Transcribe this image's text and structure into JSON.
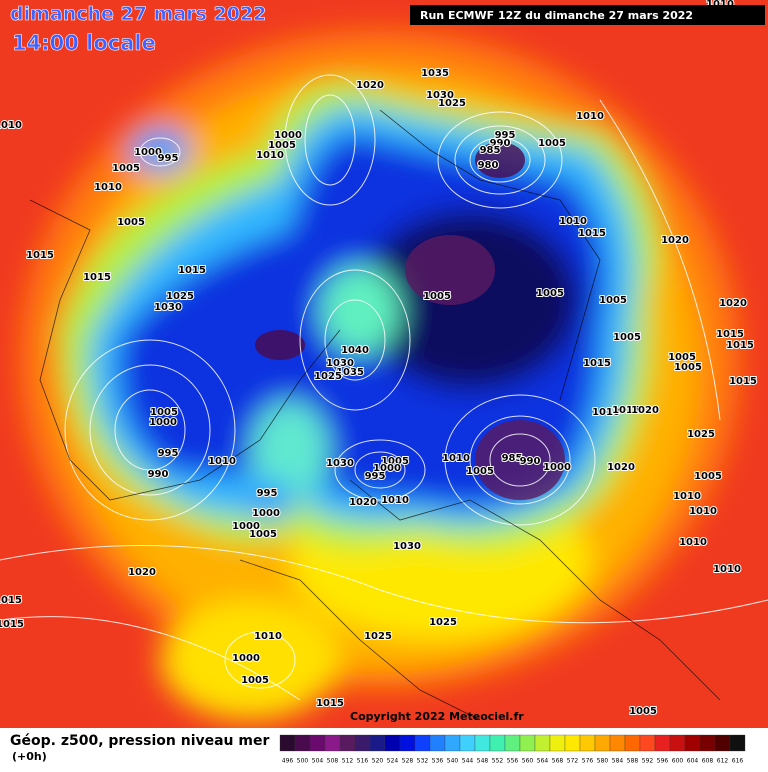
{
  "header": {
    "date": "dimanche 27 mars 2022",
    "time": "14:00 locale",
    "run": "Run ECMWF 12Z du dimanche 27 mars 2022"
  },
  "footer": {
    "copyright": "Copyright 2022 Meteociel.fr",
    "title": "Géop. z500, pression niveau mer",
    "step": "(+0h)"
  },
  "legend": {
    "labels": [
      496,
      500,
      504,
      508,
      512,
      516,
      520,
      524,
      528,
      532,
      536,
      540,
      544,
      548,
      552,
      556,
      560,
      564,
      568,
      572,
      576,
      580,
      584,
      588,
      592,
      596,
      600,
      604,
      608,
      612,
      616
    ],
    "colors": [
      "#2a0a2e",
      "#4a0a4e",
      "#6a0a6e",
      "#8a1a8a",
      "#5a1a60",
      "#3a1a6a",
      "#1a1a8a",
      "#0000b0",
      "#0010e0",
      "#1040ff",
      "#2080ff",
      "#30a8ff",
      "#40d0ff",
      "#40e8e0",
      "#40f0b0",
      "#60f080",
      "#90f050",
      "#c0f030",
      "#f0f010",
      "#ffe800",
      "#ffc800",
      "#ffa800",
      "#ff8800",
      "#ff6800",
      "#ff4820",
      "#e82020",
      "#c81010",
      "#a00000",
      "#780000",
      "#500000",
      "#101010"
    ]
  },
  "isobars": {
    "labels": [
      "1010",
      "1010",
      "1020",
      "1035",
      "1030",
      "1025",
      "1000",
      "1005",
      "1010",
      "995",
      "990",
      "985",
      "980",
      "1005",
      "1010",
      "1000",
      "995",
      "1005",
      "1010",
      "1005",
      "1015",
      "1015",
      "1015",
      "1025",
      "1030",
      "1010",
      "1015",
      "1020",
      "1005",
      "1005",
      "1005",
      "1005",
      "1015",
      "1040",
      "1035",
      "1030",
      "1025",
      "1005",
      "1000",
      "995",
      "990",
      "1010",
      "1030",
      "1005",
      "1000",
      "995",
      "1010",
      "1005",
      "985",
      "990",
      "1000",
      "1010",
      "1015",
      "1020",
      "1020",
      "995",
      "1000",
      "1000",
      "1005",
      "1020",
      "1010",
      "1030",
      "1020",
      "1015",
      "1015",
      "1025",
      "1025",
      "1010",
      "1000",
      "1005",
      "1015",
      "1005",
      "1020",
      "1015",
      "1015",
      "1005",
      "1005",
      "1015",
      "1025",
      "1005",
      "1010",
      "1010",
      "1010",
      "1010"
    ]
  }
}
